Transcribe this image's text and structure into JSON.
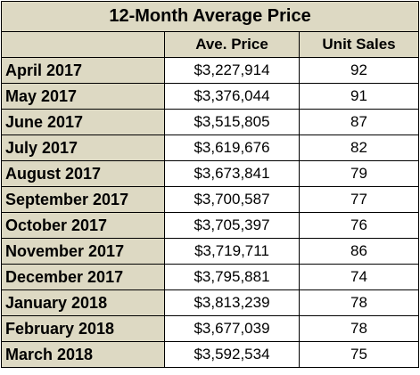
{
  "title": "12-Month Average Price",
  "headers": {
    "blank": "",
    "price": "Ave. Price",
    "sales": "Unit Sales"
  },
  "rows": [
    {
      "month": "April 2017",
      "price": "$3,227,914",
      "sales": "92"
    },
    {
      "month": "May 2017",
      "price": "$3,376,044",
      "sales": "91"
    },
    {
      "month": "June 2017",
      "price": "$3,515,805",
      "sales": "87"
    },
    {
      "month": "July 2017",
      "price": "$3,619,676",
      "sales": "82"
    },
    {
      "month": "August 2017",
      "price": "$3,673,841",
      "sales": "79"
    },
    {
      "month": "September 2017",
      "price": "$3,700,587",
      "sales": "77"
    },
    {
      "month": "October 2017",
      "price": "$3,705,397",
      "sales": "76"
    },
    {
      "month": "November 2017",
      "price": "$3,719,711",
      "sales": "86"
    },
    {
      "month": "December 2017",
      "price": "$3,795,881",
      "sales": "74"
    },
    {
      "month": "January 2018",
      "price": "$3,813,239",
      "sales": "78"
    },
    {
      "month": "February 2018",
      "price": "$3,677,039",
      "sales": "78"
    },
    {
      "month": "March 2018",
      "price": "$3,592,534",
      "sales": "75"
    }
  ],
  "colors": {
    "header_fill": "#ddd9c3",
    "cell_fill": "#ffffff",
    "border": "#000000"
  }
}
